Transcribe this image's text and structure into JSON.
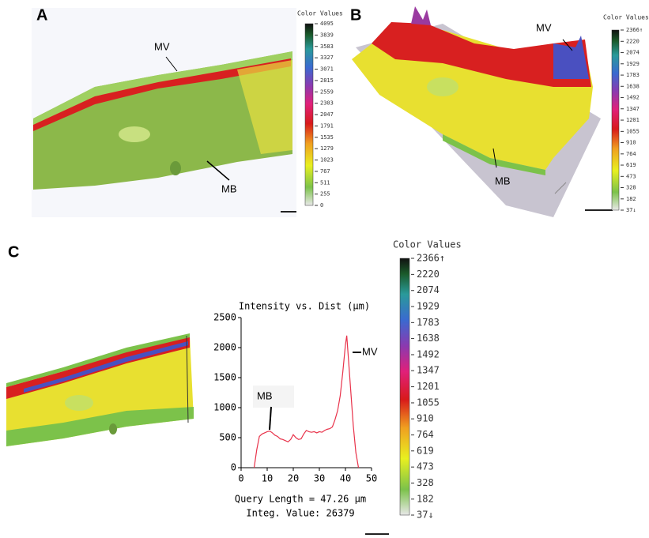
{
  "panels": {
    "a": {
      "label": "A",
      "labels": [
        "MV",
        "MB"
      ],
      "colorbar_title": "Color Values",
      "colorbar_ticks": [
        4095,
        3839,
        3583,
        3327,
        3071,
        2815,
        2559,
        2303,
        2047,
        1791,
        1535,
        1279,
        1023,
        767,
        511,
        255,
        0
      ]
    },
    "b": {
      "label": "B",
      "labels": [
        "MV",
        "MB"
      ],
      "colorbar_title": "Color Values",
      "colorbar_ticks": [
        {
          "value": 2366,
          "label": "2366↑"
        },
        2220,
        2074,
        1929,
        1783,
        1638,
        1492,
        1347,
        1201,
        1055,
        910,
        764,
        619,
        473,
        328,
        182,
        {
          "value": 37,
          "label": "37↓"
        }
      ]
    },
    "c": {
      "label": "C",
      "colorbar_title": "Color Values",
      "colorbar_ticks": [
        {
          "value": 2366,
          "label": "2366↑"
        },
        2220,
        2074,
        1929,
        1783,
        1638,
        1492,
        1347,
        1201,
        1055,
        910,
        764,
        619,
        473,
        328,
        182,
        {
          "value": 37,
          "label": "37↓"
        }
      ]
    }
  },
  "chart_data": {
    "type": "line",
    "title": "Intensity vs. Dist (µm)",
    "x": [
      5,
      6,
      7,
      8,
      9,
      10,
      11,
      12,
      13,
      14,
      15,
      16,
      17,
      18,
      19,
      20,
      21,
      22,
      23,
      24,
      25,
      26,
      27,
      28,
      29,
      30,
      31,
      32,
      33,
      34,
      35,
      36,
      37,
      38,
      39,
      40,
      40.5,
      41,
      42,
      43,
      44,
      45
    ],
    "values": [
      0,
      300,
      520,
      560,
      580,
      600,
      610,
      580,
      540,
      520,
      480,
      470,
      450,
      430,
      470,
      550,
      500,
      470,
      480,
      560,
      620,
      600,
      590,
      600,
      580,
      600,
      590,
      620,
      640,
      650,
      680,
      800,
      950,
      1200,
      1600,
      2050,
      2200,
      1900,
      1300,
      700,
      250,
      0
    ],
    "color": "#e8324a",
    "xlim": [
      0,
      50
    ],
    "xticks": [
      0,
      10,
      20,
      30,
      40,
      50
    ],
    "ylim": [
      0,
      2500
    ],
    "yticks": [
      0,
      500,
      1000,
      1500,
      2000,
      2500
    ],
    "annotations": [
      "MB",
      "MV"
    ],
    "notes": [
      "Query Length = 47.26 µm",
      "Integ. Value: 26379"
    ]
  }
}
